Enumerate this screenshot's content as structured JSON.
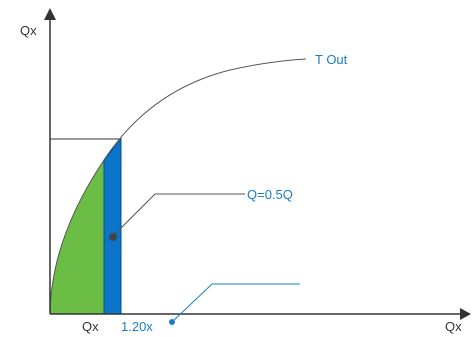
{
  "axes": {
    "y_axis_label": "Qx",
    "x_axis_label": "Qx"
  },
  "labels": {
    "curve": "T Out",
    "flow": "Q=0.5Q",
    "x_tick_1": "Qx",
    "x_tick_2": "1.20x"
  },
  "colors": {
    "green_fill": "#6cbd45",
    "blue_fill": "#0b76c9",
    "blue_outline": "#0a4f8a",
    "accent_text": "#1a7fc1",
    "axis": "#333333",
    "curve": "#555555",
    "marker": "#444444"
  }
}
